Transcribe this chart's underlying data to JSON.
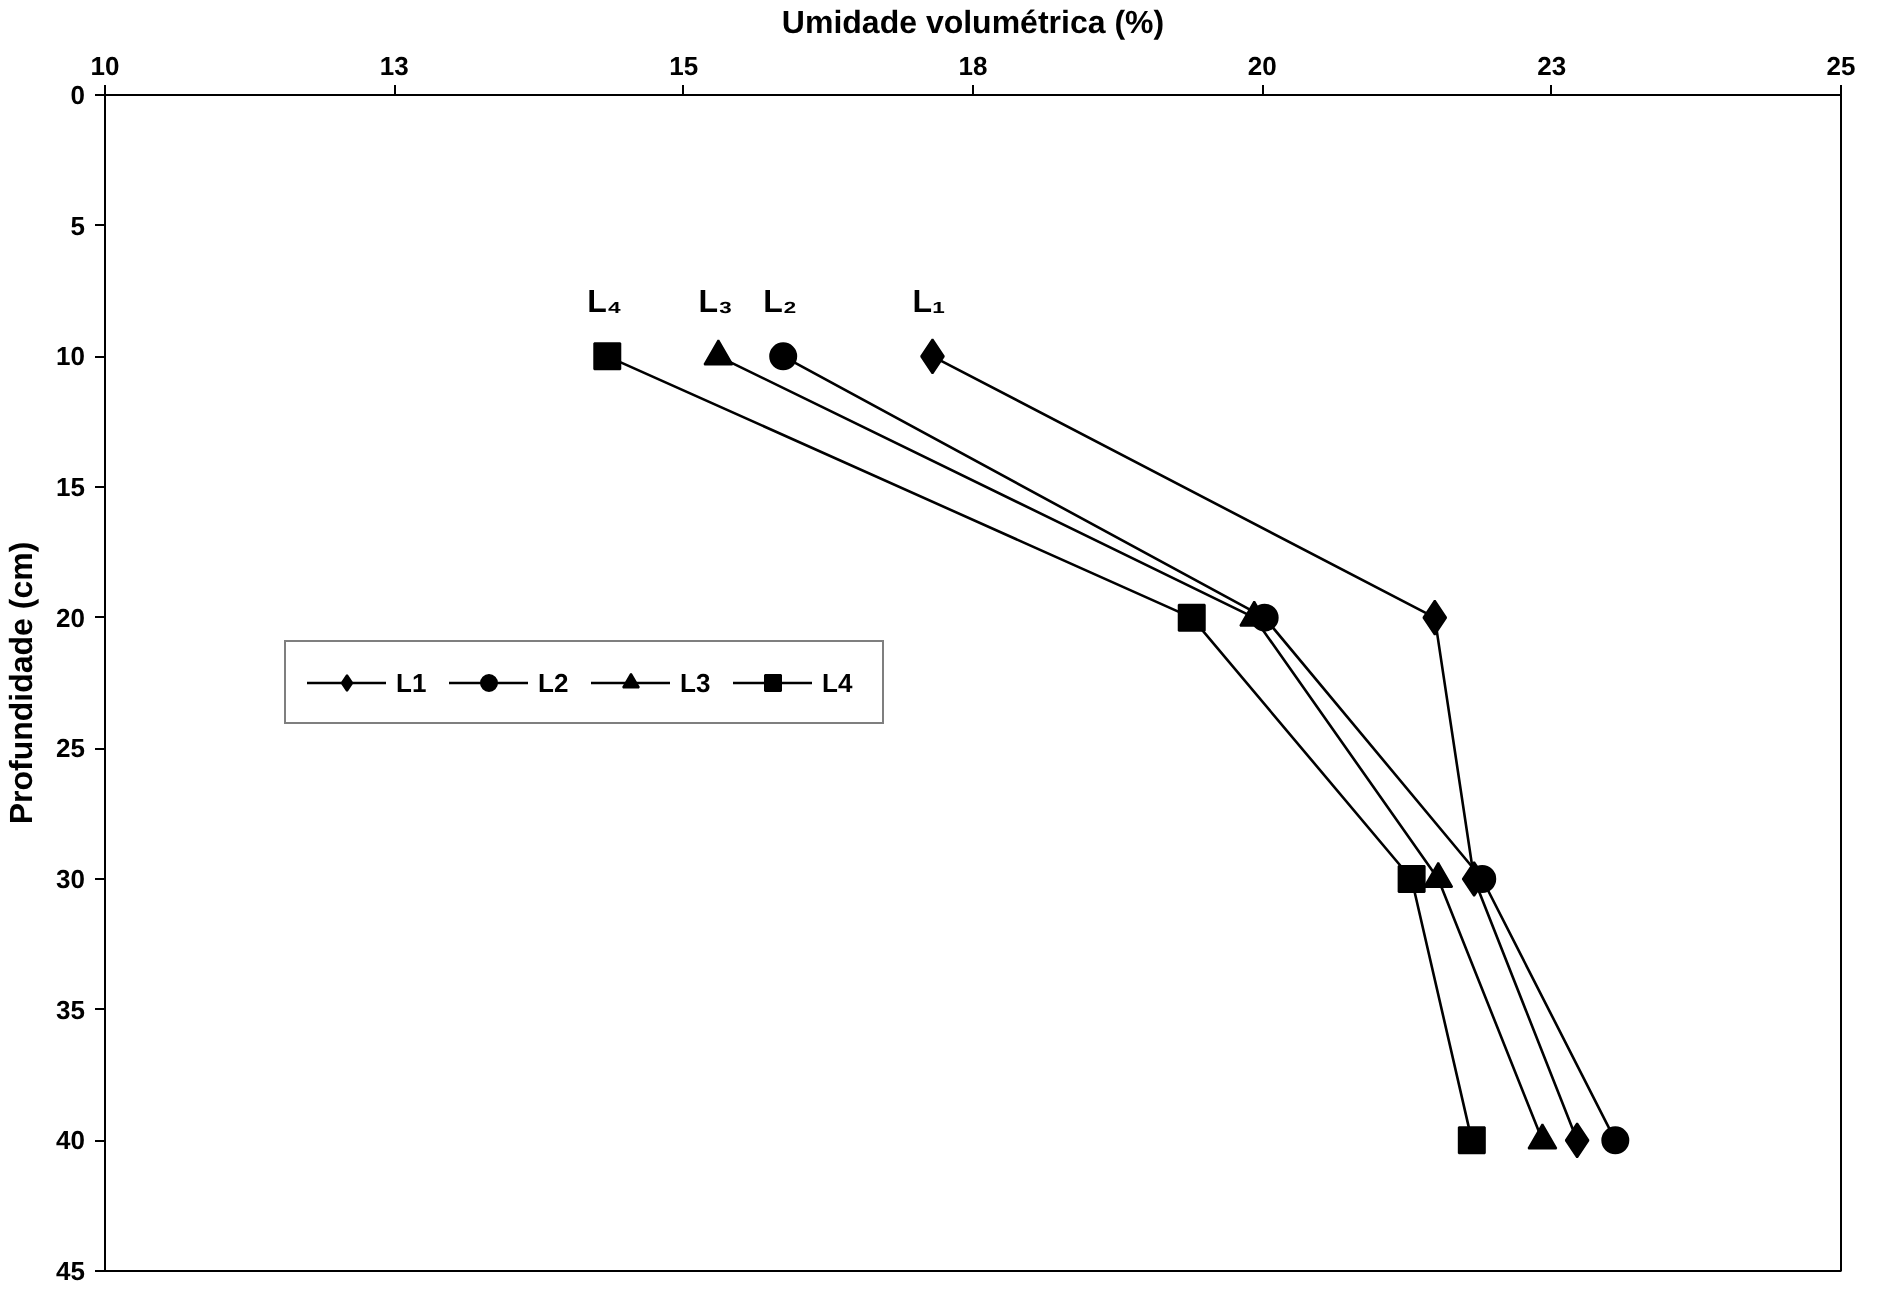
{
  "chart_data": {
    "type": "line",
    "xlabel": "Umidade volumétrica (%)",
    "ylabel": "Profundidade (cm)",
    "xlim": [
      10,
      25
    ],
    "xticks": [
      10,
      {
        "value": 12.5,
        "label": "13"
      },
      15,
      {
        "value": 17.5,
        "label": "18"
      },
      20,
      {
        "value": 22.5,
        "label": "23"
      },
      25
    ],
    "ylim": [
      45,
      0
    ],
    "yticks": [
      0,
      5,
      10,
      15,
      20,
      25,
      30,
      35,
      40,
      45
    ],
    "series": [
      {
        "name": "L1",
        "color": "#000000",
        "marker": "diamond",
        "x": [
          17.15,
          21.49,
          21.83,
          22.72
        ],
        "values": [
          10,
          20,
          30,
          40
        ]
      },
      {
        "name": "L2",
        "color": "#000000",
        "marker": "circle",
        "x": [
          15.86,
          20.02,
          21.9,
          23.05
        ],
        "values": [
          10,
          20,
          30,
          40
        ]
      },
      {
        "name": "L3",
        "color": "#000000",
        "marker": "triangle",
        "x": [
          15.3,
          19.93,
          21.52,
          22.42
        ],
        "values": [
          10,
          20,
          30,
          40
        ]
      },
      {
        "name": "L4",
        "color": "#000000",
        "marker": "square",
        "x": [
          14.34,
          19.39,
          21.29,
          21.81
        ],
        "values": [
          10,
          20,
          30,
          40
        ]
      }
    ],
    "annotations": [
      {
        "text": "L₁",
        "x": 17.15,
        "y": 10
      },
      {
        "text": "L₂",
        "x": 15.86,
        "y": 10
      },
      {
        "text": "L₃",
        "x": 15.3,
        "y": 10
      },
      {
        "text": "L₄",
        "x": 14.34,
        "y": 10
      }
    ],
    "grid": false,
    "legend": "left",
    "line_style": "solid"
  }
}
